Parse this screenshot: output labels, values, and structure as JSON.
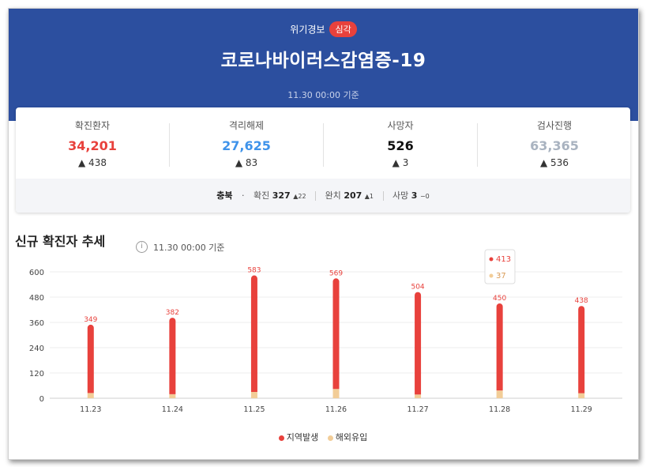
{
  "header": {
    "alert_label": "위기경보",
    "alert_level": "심각",
    "title": "코로나바이러스감염증-19",
    "basis": "11.30 00:00 기준"
  },
  "stats": [
    {
      "label": "확진환자",
      "value": "34,201",
      "delta": "▲ 438",
      "color": "#e8413c"
    },
    {
      "label": "격리해제",
      "value": "27,625",
      "delta": "▲ 83",
      "color": "#3f93ea"
    },
    {
      "label": "사망자",
      "value": "526",
      "delta": "▲ 3",
      "color": "#111111"
    },
    {
      "label": "검사진행",
      "value": "63,365",
      "delta": "▲ 536",
      "color": "#a9b3c0"
    }
  ],
  "region": {
    "name": "충북",
    "dot": "·",
    "confirmed_label": "확진",
    "confirmed_value": "327",
    "confirmed_delta": "▲22",
    "released_label": "완치",
    "released_value": "207",
    "released_delta": "▲1",
    "deaths_label": "사망",
    "deaths_value": "3",
    "deaths_delta": "−0"
  },
  "trend": {
    "title": "신규 확진자 추세",
    "basis": "11.30 00:00 기준",
    "info_icon": "info-icon"
  },
  "tooltip": {
    "local": "413",
    "overseas": "37"
  },
  "chart_data": {
    "type": "bar",
    "stacked": true,
    "categories": [
      "11.23",
      "11.24",
      "11.25",
      "11.26",
      "11.27",
      "11.28",
      "11.29"
    ],
    "totals": [
      349,
      382,
      583,
      569,
      504,
      450,
      438
    ],
    "series": [
      {
        "name": "지역발생",
        "color": "#e8413c",
        "values": [
          324,
          363,
          553,
          525,
          486,
          413,
          414
        ]
      },
      {
        "name": "해외유입",
        "color": "#f2cd98",
        "values": [
          25,
          19,
          30,
          44,
          18,
          37,
          24
        ]
      }
    ],
    "yticks": [
      0,
      120,
      240,
      360,
      480,
      600
    ],
    "ylim": [
      0,
      600
    ],
    "grid": true,
    "legend": "bottom"
  }
}
